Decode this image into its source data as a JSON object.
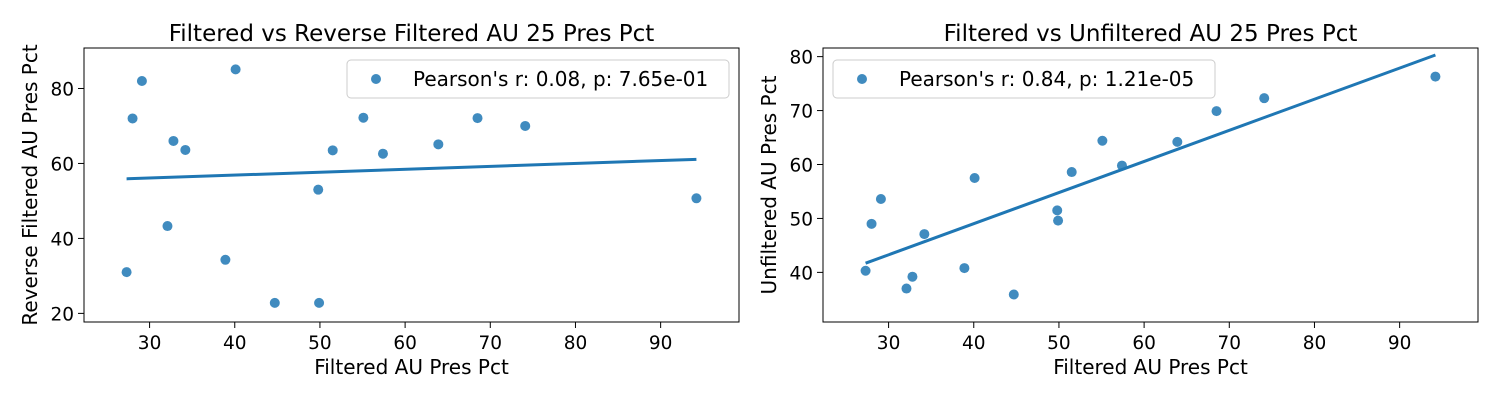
{
  "chart_data": [
    {
      "type": "scatter",
      "title": "Filtered vs Reverse Filtered AU 25 Pres Pct",
      "xlabel": "Filtered AU Pres Pct",
      "ylabel": "Reverse Filtered AU Pres Pct",
      "xlim": [
        22.3,
        99.2
      ],
      "ylim": [
        17.7,
        90.8
      ],
      "xticks": [
        30,
        40,
        50,
        60,
        70,
        80,
        90
      ],
      "yticks": [
        20,
        40,
        60,
        80
      ],
      "grid": false,
      "legend_position": "top-right",
      "series": [
        {
          "name": "Pearson's r: 0.08, p: 7.65e-01",
          "points": [
            {
              "x": 27.3,
              "y": 31.0
            },
            {
              "x": 28.0,
              "y": 72.0
            },
            {
              "x": 29.1,
              "y": 82.0
            },
            {
              "x": 32.1,
              "y": 43.3
            },
            {
              "x": 32.8,
              "y": 66.0
            },
            {
              "x": 34.2,
              "y": 63.6
            },
            {
              "x": 38.9,
              "y": 34.3
            },
            {
              "x": 40.1,
              "y": 85.1
            },
            {
              "x": 44.7,
              "y": 22.8
            },
            {
              "x": 49.8,
              "y": 53.0
            },
            {
              "x": 49.9,
              "y": 22.8
            },
            {
              "x": 51.5,
              "y": 63.5
            },
            {
              "x": 55.1,
              "y": 72.2
            },
            {
              "x": 57.4,
              "y": 62.6
            },
            {
              "x": 63.9,
              "y": 65.1
            },
            {
              "x": 68.5,
              "y": 72.1
            },
            {
              "x": 74.1,
              "y": 70.0
            },
            {
              "x": 94.2,
              "y": 50.7
            }
          ],
          "trendline": {
            "x": [
              27.3,
              94.2
            ],
            "y": [
              55.9,
              61.1
            ]
          }
        }
      ]
    },
    {
      "type": "scatter",
      "title": "Filtered vs Unfiltered AU 25 Pres Pct",
      "xlabel": "Filtered AU Pres Pct",
      "ylabel": "Unfiltered AU Pres Pct",
      "xlim": [
        22.3,
        99.2
      ],
      "ylim": [
        30.8,
        81.6
      ],
      "xticks": [
        30,
        40,
        50,
        60,
        70,
        80,
        90
      ],
      "yticks": [
        40,
        50,
        60,
        70,
        80
      ],
      "grid": false,
      "legend_position": "top-left",
      "series": [
        {
          "name": "Pearson's r: 0.84, p: 1.21e-05",
          "points": [
            {
              "x": 27.3,
              "y": 40.3
            },
            {
              "x": 28.0,
              "y": 49.0
            },
            {
              "x": 29.1,
              "y": 53.6
            },
            {
              "x": 32.1,
              "y": 37.0
            },
            {
              "x": 32.8,
              "y": 39.2
            },
            {
              "x": 34.2,
              "y": 47.1
            },
            {
              "x": 38.9,
              "y": 40.8
            },
            {
              "x": 40.1,
              "y": 57.5
            },
            {
              "x": 44.7,
              "y": 35.9
            },
            {
              "x": 49.8,
              "y": 51.5
            },
            {
              "x": 49.9,
              "y": 49.6
            },
            {
              "x": 51.5,
              "y": 58.6
            },
            {
              "x": 55.1,
              "y": 64.4
            },
            {
              "x": 57.4,
              "y": 59.8
            },
            {
              "x": 63.9,
              "y": 64.2
            },
            {
              "x": 68.5,
              "y": 69.9
            },
            {
              "x": 74.1,
              "y": 72.3
            },
            {
              "x": 94.2,
              "y": 76.3
            }
          ],
          "trendline": {
            "x": [
              27.3,
              94.2
            ],
            "y": [
              41.7,
              80.3
            ]
          }
        }
      ]
    }
  ],
  "colors": {
    "points": "#1f77b4",
    "trendline": "#1f77b4"
  }
}
